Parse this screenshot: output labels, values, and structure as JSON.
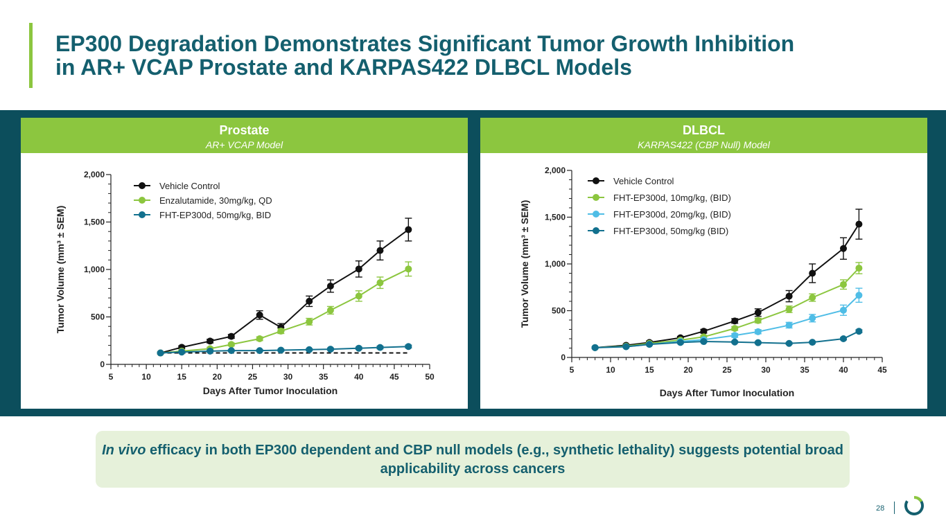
{
  "title": {
    "line1": "EP300 Degradation Demonstrates Significant Tumor Growth Inhibition",
    "line2": "in AR+ VCAP Prostate and KARPAS422 DLBCL Models"
  },
  "panels": [
    {
      "title": "Prostate",
      "subtitle": "AR+ VCAP Model"
    },
    {
      "title": "DLBCL",
      "subtitle": "KARPAS422 (CBP Null) Model"
    }
  ],
  "callout": {
    "italic": "In vivo",
    "text": " efficacy in both EP300 dependent and CBP null models (e.g., synthetic lethality) suggests potential broad applicability across cancers"
  },
  "footer": {
    "page": "28"
  },
  "colors": {
    "title": "#145f6e",
    "accent": "#8cc63f",
    "band": "#0c4e5c",
    "vehicle": "#111111",
    "green": "#8cc63f",
    "lightblue": "#4fbde6",
    "teal": "#12708e"
  },
  "chart_data": [
    {
      "type": "line",
      "title": "Prostate",
      "subtitle": "AR+ VCAP Model",
      "xlabel": "Days After Tumor Inoculation",
      "ylabel": "Tumor Volume (mm³ ± SEM)",
      "xlim": [
        5,
        50
      ],
      "ylim": [
        0,
        2000
      ],
      "xticks": [
        5,
        10,
        15,
        20,
        25,
        30,
        35,
        40,
        45,
        50
      ],
      "yticks": [
        0,
        500,
        1000,
        1500,
        2000
      ],
      "ytick_labels": [
        "0",
        "500",
        "1,000",
        "1,500",
        "2,000"
      ],
      "reference_line": {
        "style": "dashed",
        "y": 120,
        "x_from": 12,
        "x_to": 47
      },
      "series": [
        {
          "name": "Vehicle  Control",
          "color": "#111111",
          "x": [
            12,
            15,
            19,
            22,
            29,
            26,
            33,
            36,
            40,
            43,
            47
          ],
          "y": [
            120,
            180,
            245,
            295,
            390,
            520,
            665,
            825,
            1005,
            1200,
            1420
          ],
          "err": [
            10,
            15,
            20,
            20,
            40,
            45,
            55,
            65,
            85,
            100,
            120
          ]
        },
        {
          "name": "Enzalutamide, 30mg/kg, QD",
          "color": "#8cc63f",
          "x": [
            12,
            15,
            19,
            22,
            26,
            29,
            33,
            36,
            40,
            43,
            47
          ],
          "y": [
            120,
            140,
            165,
            210,
            270,
            350,
            450,
            570,
            720,
            860,
            1005
          ],
          "err": [
            8,
            10,
            15,
            15,
            20,
            25,
            35,
            40,
            55,
            60,
            75
          ]
        },
        {
          "name": "FHT-EP300d, 50mg/kg, BID",
          "color": "#12708e",
          "x": [
            12,
            15,
            19,
            22,
            26,
            29,
            33,
            36,
            40,
            43,
            47
          ],
          "y": [
            120,
            130,
            140,
            145,
            145,
            150,
            155,
            160,
            170,
            178,
            188
          ],
          "err": [
            6,
            6,
            8,
            8,
            10,
            10,
            10,
            12,
            12,
            14,
            15
          ]
        }
      ]
    },
    {
      "type": "line",
      "title": "DLBCL",
      "subtitle": "KARPAS422 (CBP Null) Model",
      "xlabel": "Days After Tumor Inoculation",
      "ylabel": "Tumor Volume (mm³ ± SEM)",
      "xlim": [
        5,
        45
      ],
      "ylim": [
        0,
        2000
      ],
      "xticks": [
        5,
        10,
        15,
        20,
        25,
        30,
        35,
        40,
        45
      ],
      "yticks": [
        0,
        500,
        1000,
        1500,
        2000
      ],
      "ytick_labels": [
        "0",
        "500",
        "1,000",
        "1,500",
        "2,000"
      ],
      "series": [
        {
          "name": "Vehicle Control",
          "color": "#111111",
          "x": [
            8,
            12,
            15,
            19,
            22,
            26,
            29,
            33,
            36,
            40,
            42
          ],
          "y": [
            105,
            130,
            160,
            210,
            280,
            390,
            480,
            655,
            900,
            1165,
            1425
          ],
          "err": [
            8,
            10,
            15,
            15,
            20,
            25,
            40,
            60,
            100,
            115,
            160
          ]
        },
        {
          "name": "FHT-EP300d, 10mg/kg, (BID)",
          "color": "#8cc63f",
          "x": [
            8,
            12,
            15,
            19,
            22,
            26,
            29,
            33,
            36,
            40,
            42
          ],
          "y": [
            105,
            120,
            150,
            185,
            220,
            310,
            395,
            515,
            640,
            780,
            955
          ],
          "err": [
            8,
            10,
            12,
            15,
            15,
            20,
            25,
            35,
            40,
            50,
            60
          ]
        },
        {
          "name": "FHT-EP300d, 20mg/kg, (BID)",
          "color": "#4fbde6",
          "x": [
            8,
            12,
            15,
            19,
            22,
            26,
            29,
            33,
            36,
            40,
            42
          ],
          "y": [
            105,
            115,
            140,
            170,
            190,
            235,
            275,
            345,
            420,
            505,
            665
          ],
          "err": [
            8,
            8,
            10,
            12,
            15,
            20,
            22,
            30,
            40,
            55,
            75
          ]
        },
        {
          "name": "FHT-EP300d, 50mg/kg (BID)",
          "color": "#12708e",
          "x": [
            8,
            12,
            15,
            19,
            22,
            26,
            29,
            33,
            36,
            40,
            42
          ],
          "y": [
            105,
            115,
            140,
            160,
            170,
            165,
            158,
            150,
            162,
            200,
            280
          ],
          "err": [
            6,
            8,
            8,
            10,
            10,
            10,
            10,
            10,
            10,
            12,
            15
          ]
        }
      ]
    }
  ]
}
